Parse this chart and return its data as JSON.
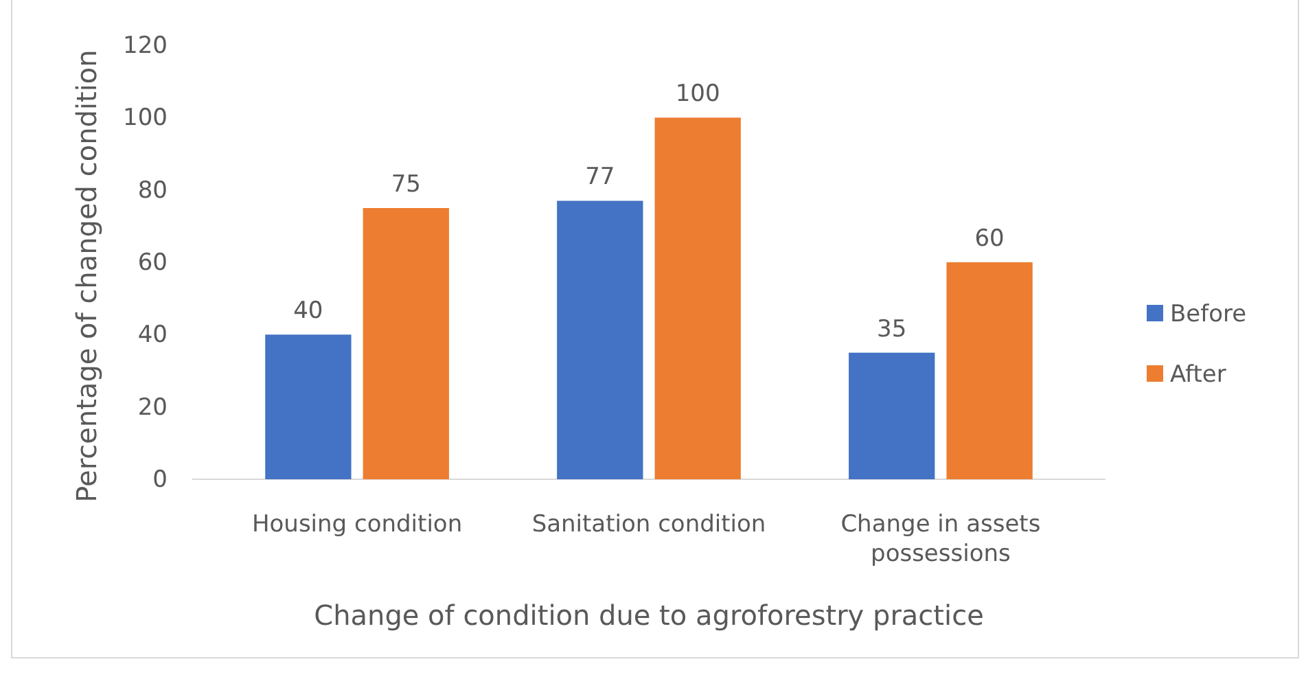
{
  "chart_data": {
    "type": "bar",
    "xlabel": "Change of condition due to agroforestry practice",
    "ylabel": "Percentage of changed condition",
    "categories": [
      "Housing condition",
      "Sanitation condition",
      "Change in assets possessions"
    ],
    "series": [
      {
        "name": "Before",
        "color": "#4472c4",
        "values": [
          40,
          77,
          35
        ]
      },
      {
        "name": "After",
        "color": "#ed7d31",
        "values": [
          75,
          100,
          60
        ]
      }
    ],
    "ylim": [
      0,
      120
    ],
    "yticks": [
      0,
      20,
      40,
      60,
      80,
      100,
      120
    ],
    "grid": false,
    "legend": "right",
    "data_labels": true
  }
}
